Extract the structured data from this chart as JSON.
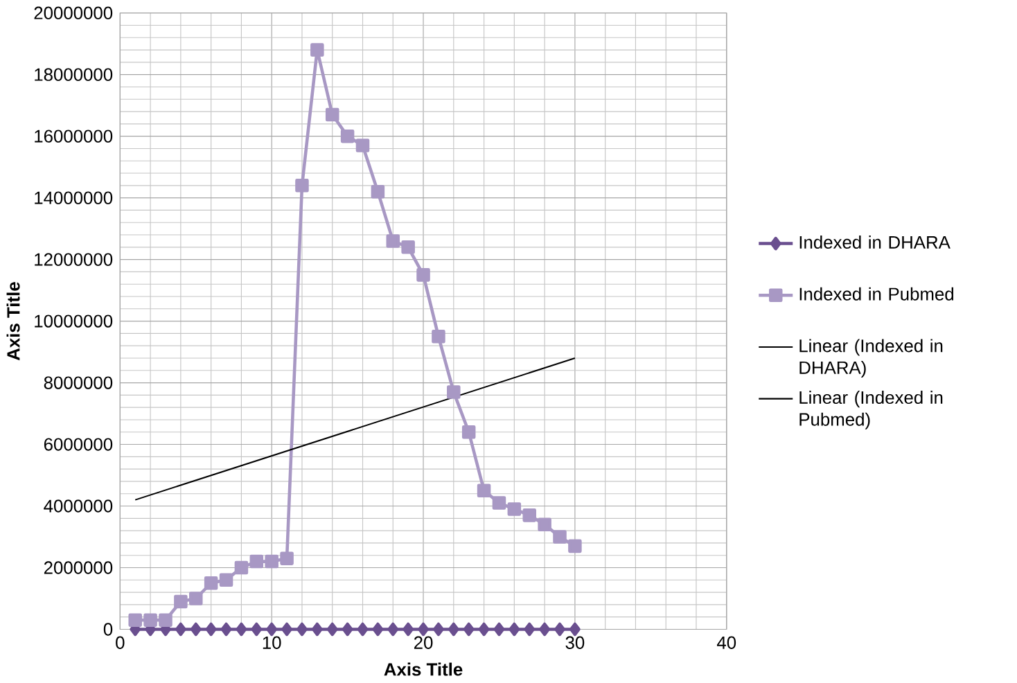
{
  "chart_data": {
    "type": "line",
    "xlabel": "Axis Title",
    "ylabel": "Axis Title",
    "xlim": [
      0,
      40
    ],
    "xticks": [
      0,
      10,
      20,
      30,
      40
    ],
    "ylim": [
      0,
      20000000
    ],
    "yticks": [
      0,
      2000000,
      4000000,
      6000000,
      8000000,
      10000000,
      12000000,
      14000000,
      16000000,
      18000000,
      20000000
    ],
    "grid": true,
    "legend": "right",
    "series": [
      {
        "name": "Indexed in DHARA",
        "color": "#6a4f8f",
        "marker": "diamond",
        "x": [
          1,
          2,
          3,
          4,
          5,
          6,
          7,
          8,
          9,
          10,
          11,
          12,
          13,
          14,
          15,
          16,
          17,
          18,
          19,
          20,
          21,
          22,
          23,
          24,
          25,
          26,
          27,
          28,
          29,
          30
        ],
        "values": [
          0,
          0,
          0,
          0,
          0,
          0,
          0,
          0,
          0,
          0,
          0,
          0,
          0,
          0,
          0,
          0,
          0,
          0,
          0,
          0,
          0,
          0,
          0,
          0,
          0,
          0,
          0,
          0,
          0,
          0
        ]
      },
      {
        "name": "Indexed in Pubmed",
        "color": "#a898c4",
        "marker": "square",
        "x": [
          1,
          2,
          3,
          4,
          5,
          6,
          7,
          8,
          9,
          10,
          11,
          12,
          13,
          14,
          15,
          16,
          17,
          18,
          19,
          20,
          21,
          22,
          23,
          24,
          25,
          26,
          27,
          28,
          29,
          30
        ],
        "values": [
          300000,
          300000,
          300000,
          900000,
          1000000,
          1500000,
          1600000,
          2000000,
          2200000,
          2200000,
          2300000,
          14400000,
          18800000,
          16700000,
          16000000,
          15700000,
          14200000,
          12600000,
          12400000,
          11500000,
          9500000,
          7700000,
          6400000,
          4500000,
          4100000,
          3900000,
          3700000,
          3400000,
          3000000,
          2700000
        ]
      },
      {
        "name": "Linear (Indexed in DHARA)",
        "color": "#000000",
        "marker": "none"
      },
      {
        "name": "Linear (Indexed in Pubmed)",
        "color": "#000000",
        "marker": "none",
        "x": [
          1,
          30
        ],
        "values": [
          4200000,
          8800000
        ]
      }
    ]
  }
}
